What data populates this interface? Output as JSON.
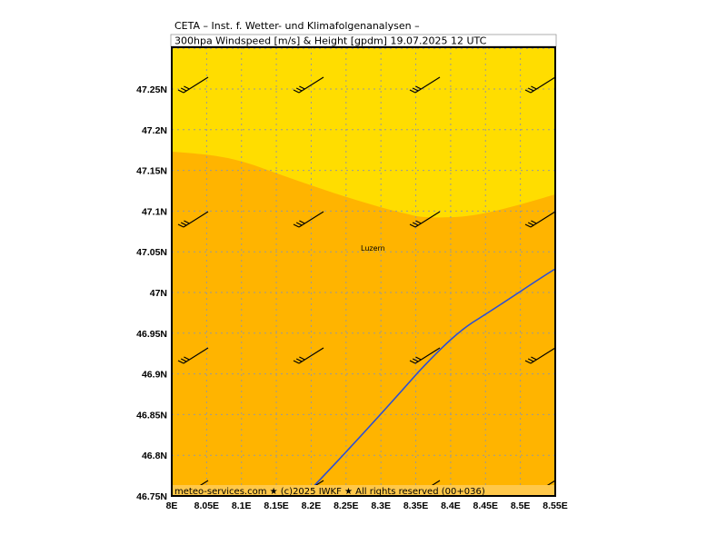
{
  "header": {
    "line1": "CETA – Inst. f. Wetter- und Klimafolgenanalysen –",
    "line2": "300hpa Windspeed [m/s] & Height [gpdm] 19.07.2025 12 UTC"
  },
  "map": {
    "lat_labels": [
      "47.25N",
      "47.2N",
      "47.15N",
      "47.1N",
      "47.05N",
      "47N",
      "46.95N",
      "46.9N",
      "46.85N",
      "46.8N",
      "46.75N"
    ],
    "lon_labels": [
      "8E",
      "8.05E",
      "8.1E",
      "8.15E",
      "8.2E",
      "8.25E",
      "8.3E",
      "8.35E",
      "8.4E",
      "8.45E",
      "8.5E",
      "8.55E"
    ],
    "city": "Luzern",
    "footer": "meteo-services.com ★ (c)2025 IWKF ★ All rights reserved (00+036)"
  }
}
